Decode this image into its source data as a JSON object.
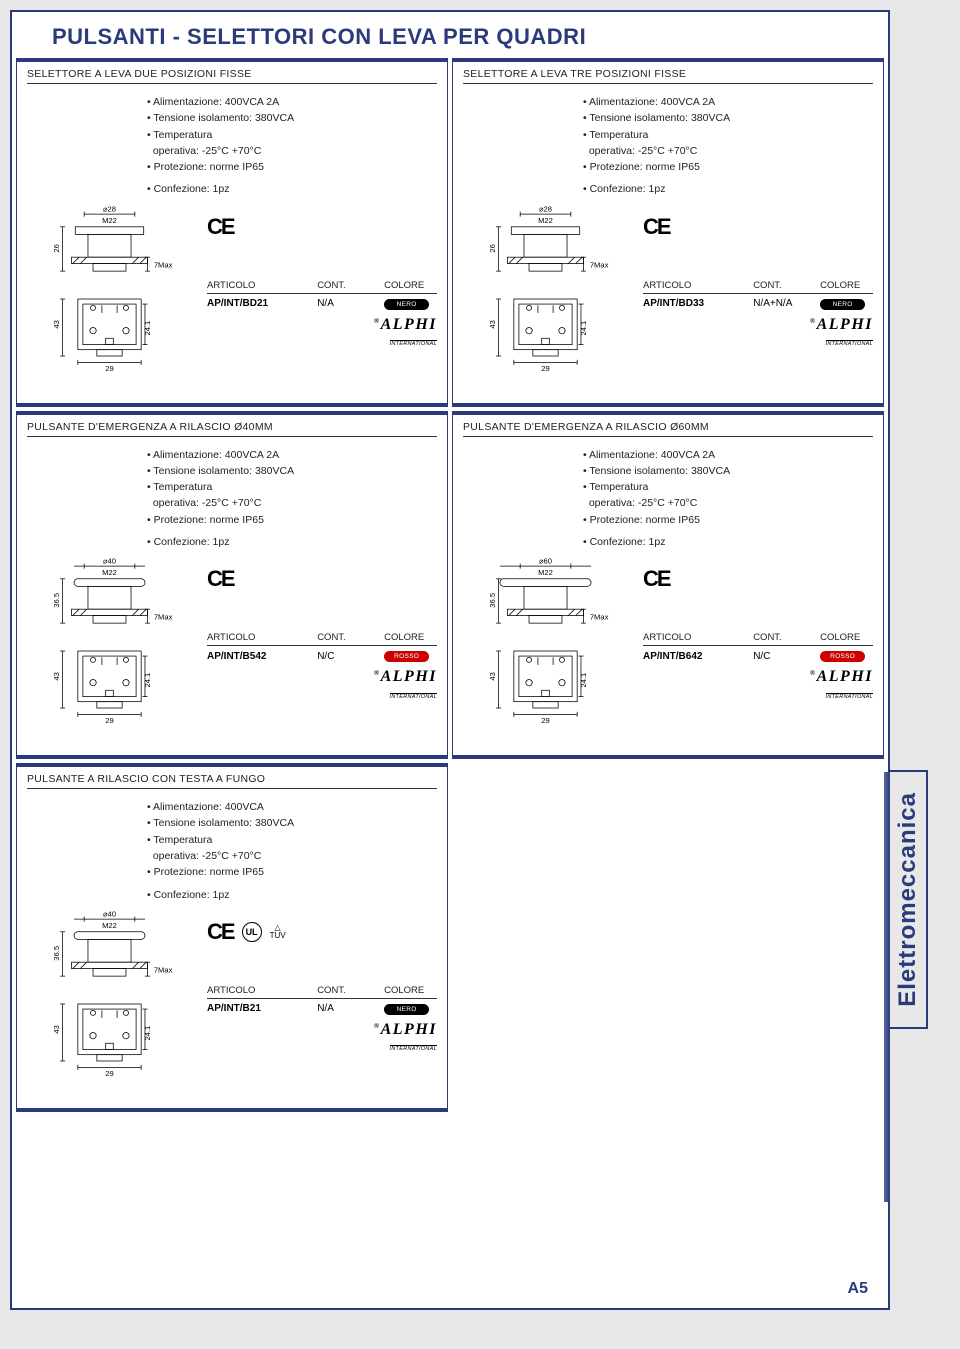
{
  "page_title": "PULSANTI - SELETTORI CON LEVA PER QUADRI",
  "side_label": "Elettromeccanica",
  "page_number": "A5",
  "brand": {
    "name": "ALPHI",
    "sub": "INTERNATIONAL",
    "reg": "®"
  },
  "table_headers": {
    "articolo": "ARTICOLO",
    "cont": "CONT.",
    "colore": "COLORE"
  },
  "specs_common": {
    "alim": "Alimentazione: 400VCA 2A",
    "alim_noA": "Alimentazione: 400VCA",
    "tens": "Tensione isolamento: 380VCA",
    "temp1": "Temperatura",
    "temp2": "operativa: -25°C +70°C",
    "prot": "Protezione: norme IP65",
    "conf": "Confezione: 1pz"
  },
  "colors": {
    "nero": {
      "label": "NERO",
      "bg": "#000000"
    },
    "rosso": {
      "label": "ROSSO",
      "bg": "#cc0000"
    }
  },
  "cards": {
    "c1": {
      "title": "SELETTORE A LEVA DUE POSIZIONI FISSE",
      "articolo": "AP/INT/BD21",
      "cont": "N/A",
      "color_key": "nero",
      "diagram": {
        "top_d": "⌀28",
        "m": "M22",
        "h": "26",
        "pmax": "7Max",
        "body_h": "43",
        "inner_h": "24.1",
        "w": "29"
      }
    },
    "c2": {
      "title": "SELETTORE A LEVA TRE POSIZIONI FISSE",
      "articolo": "AP/INT/BD33",
      "cont": "N/A+N/A",
      "color_key": "nero",
      "diagram": {
        "top_d": "⌀28",
        "m": "M22",
        "h": "26",
        "pmax": "7Max",
        "body_h": "43",
        "inner_h": "24.1",
        "w": "29"
      }
    },
    "c3": {
      "title": "PULSANTE D'EMERGENZA A RILASCIO Ø40MM",
      "articolo": "AP/INT/B542",
      "cont": "N/C",
      "color_key": "rosso",
      "diagram": {
        "top_d": "⌀40",
        "m": "M22",
        "h": "36.5",
        "pmax": "7Max",
        "body_h": "43",
        "inner_h": "24.1",
        "w": "29"
      }
    },
    "c4": {
      "title": "PULSANTE D'EMERGENZA A RILASCIO Ø60MM",
      "articolo": "AP/INT/B642",
      "cont": "N/C",
      "color_key": "rosso",
      "diagram": {
        "top_d": "⌀60",
        "m": "M22",
        "h": "36.5",
        "pmax": "7Max",
        "body_h": "43",
        "inner_h": "24.1",
        "w": "29"
      }
    },
    "c5": {
      "title": "PULSANTE A RILASCIO CON TESTA A FUNGO",
      "articolo": "AP/INT/B21",
      "cont": "N/A",
      "color_key": "nero",
      "alim_key": "alim_noA",
      "certs": [
        "UL",
        "TUV"
      ],
      "diagram": {
        "top_d": "⌀40",
        "m": "M22",
        "h": "36.5",
        "pmax": "7Max",
        "body_h": "43",
        "inner_h": "24.1",
        "w": "29"
      }
    }
  }
}
